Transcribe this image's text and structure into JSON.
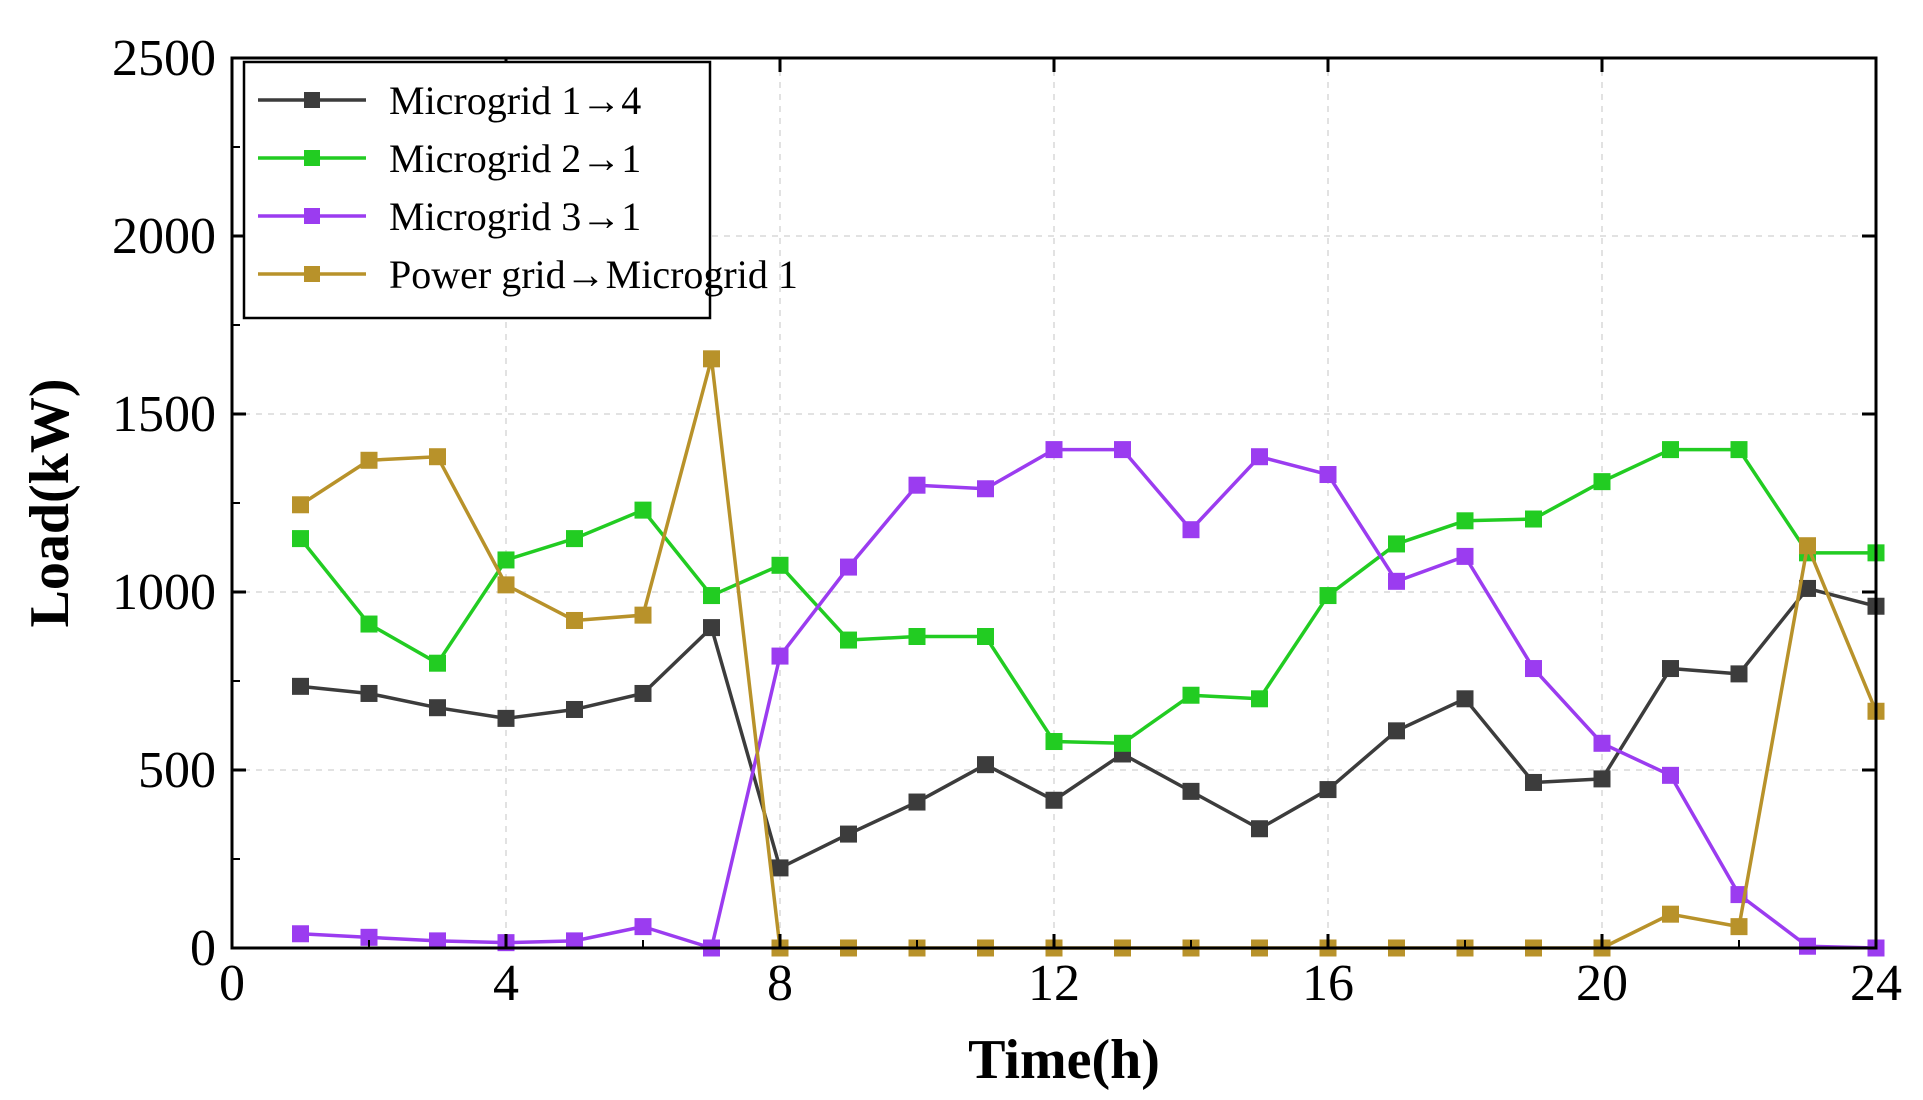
{
  "chart_data": {
    "type": "line",
    "title": "",
    "xlabel": "Time(h)",
    "ylabel": "Load(kW)",
    "xlim": [
      0,
      24
    ],
    "ylim": [
      0,
      2500
    ],
    "xticks": [
      0,
      4,
      8,
      12,
      16,
      20,
      24
    ],
    "yticks": [
      0,
      500,
      1000,
      1500,
      2000,
      2500
    ],
    "grid": true,
    "legend_position": "top-left",
    "x": [
      1,
      2,
      3,
      4,
      5,
      6,
      7,
      8,
      9,
      10,
      11,
      12,
      13,
      14,
      15,
      16,
      17,
      18,
      19,
      20,
      21,
      22,
      23,
      24
    ],
    "series": [
      {
        "name": "Microgrid 1→4",
        "color": "#3c3c3c",
        "values": [
          735,
          715,
          675,
          645,
          670,
          715,
          900,
          225,
          320,
          410,
          515,
          415,
          545,
          440,
          335,
          445,
          610,
          700,
          465,
          475,
          785,
          770,
          1010,
          960
        ]
      },
      {
        "name": "Microgrid 2→1",
        "color": "#22cc22",
        "values": [
          1150,
          910,
          800,
          1090,
          1150,
          1230,
          990,
          1075,
          865,
          875,
          875,
          580,
          575,
          710,
          700,
          990,
          1135,
          1200,
          1205,
          1310,
          1400,
          1400,
          1110,
          1110
        ]
      },
      {
        "name": "Microgrid 3→1",
        "color": "#9b3cf0",
        "values": [
          40,
          30,
          20,
          15,
          20,
          60,
          0,
          820,
          1070,
          1300,
          1290,
          1400,
          1400,
          1175,
          1380,
          1330,
          1030,
          1100,
          785,
          575,
          485,
          150,
          5,
          0
        ]
      },
      {
        "name": "Power grid→Microgrid 1",
        "color": "#b8922a",
        "values": [
          1245,
          1370,
          1380,
          1020,
          920,
          935,
          1655,
          0,
          0,
          0,
          0,
          0,
          0,
          0,
          0,
          0,
          0,
          0,
          0,
          0,
          95,
          60,
          1130,
          665
        ]
      }
    ]
  }
}
